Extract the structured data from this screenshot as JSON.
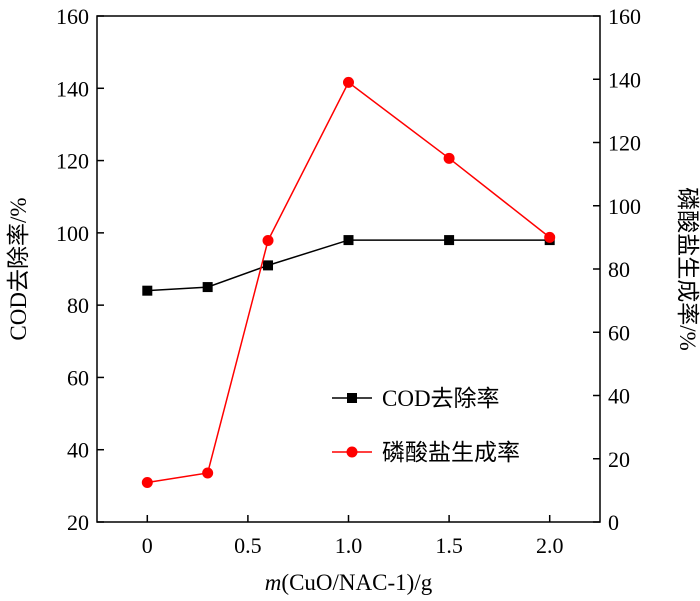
{
  "chart_data": {
    "type": "line",
    "x": [
      0,
      0.3,
      0.6,
      1.0,
      1.5,
      2.0
    ],
    "xticks": [
      "0",
      "0.5",
      "1.0",
      "1.5",
      "2.0"
    ],
    "xtick_values": [
      0,
      0.5,
      1.0,
      1.5,
      2.0
    ],
    "xlim": [
      -0.25,
      2.25
    ],
    "xlabel_italic": "m",
    "xlabel_rest": "(CuO/NAC-1)/g",
    "ylabel_left": "COD去除率/%",
    "ylabel_right": "磷酸盐生成率/%",
    "ylim_left": [
      20,
      160
    ],
    "ylim_right": [
      0,
      160
    ],
    "yticks_left": [
      "20",
      "40",
      "60",
      "80",
      "100",
      "120",
      "140",
      "160"
    ],
    "yticks_right": [
      "0",
      "20",
      "40",
      "60",
      "80",
      "100",
      "120",
      "140",
      "160"
    ],
    "series": [
      {
        "name": "COD去除率",
        "axis": "left",
        "color": "#000000",
        "marker": "square",
        "values": [
          84,
          85,
          91,
          98,
          98,
          98
        ]
      },
      {
        "name": "磷酸盐生成率",
        "axis": "right",
        "color": "#ff0000",
        "marker": "circle",
        "values": [
          12.5,
          15.5,
          89,
          139,
          115,
          90
        ]
      }
    ],
    "legend_position": "lower-right"
  }
}
